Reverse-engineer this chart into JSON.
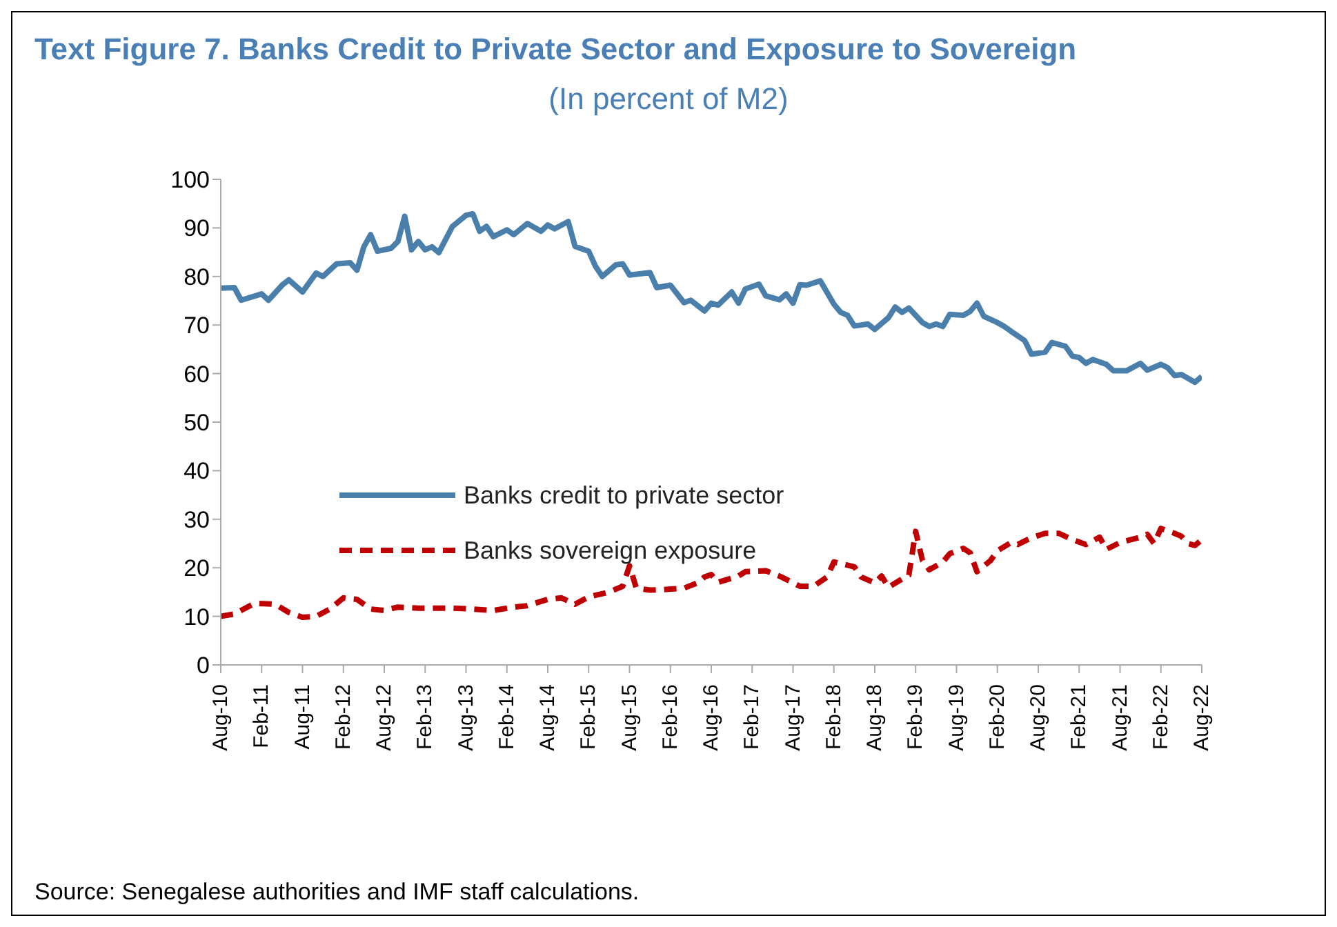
{
  "chart_data": {
    "type": "line",
    "title": "Text Figure 7. Banks Credit to Private Sector and Exposure to Sovereign",
    "subtitle": "(In percent of M2)",
    "annotations": [
      "Source: Senegalese authorities and IMF staff calculations."
    ],
    "xlim": [
      "2010-08",
      "2022-08"
    ],
    "ylim": [
      0,
      100
    ],
    "yticks": [
      0,
      10,
      20,
      30,
      40,
      50,
      60,
      70,
      80,
      90,
      100
    ],
    "xticks": [
      {
        "value": "2010-08",
        "label": "Aug-10"
      },
      {
        "value": "2011-02",
        "label": "Feb-11"
      },
      {
        "value": "2011-08",
        "label": "Aug-11"
      },
      {
        "value": "2012-02",
        "label": "Feb-12"
      },
      {
        "value": "2012-08",
        "label": "Aug-12"
      },
      {
        "value": "2013-02",
        "label": "Feb-13"
      },
      {
        "value": "2013-08",
        "label": "Aug-13"
      },
      {
        "value": "2014-02",
        "label": "Feb-14"
      },
      {
        "value": "2014-08",
        "label": "Aug-14"
      },
      {
        "value": "2015-02",
        "label": "Feb-15"
      },
      {
        "value": "2015-08",
        "label": "Aug-15"
      },
      {
        "value": "2016-02",
        "label": "Feb-16"
      },
      {
        "value": "2016-08",
        "label": "Aug-16"
      },
      {
        "value": "2017-02",
        "label": "Feb-17"
      },
      {
        "value": "2017-08",
        "label": "Aug-17"
      },
      {
        "value": "2018-02",
        "label": "Feb-18"
      },
      {
        "value": "2018-08",
        "label": "Aug-18"
      },
      {
        "value": "2019-02",
        "label": "Feb-19"
      },
      {
        "value": "2019-08",
        "label": "Aug-19"
      },
      {
        "value": "2020-02",
        "label": "Feb-20"
      },
      {
        "value": "2020-08",
        "label": "Aug-20"
      },
      {
        "value": "2021-02",
        "label": "Feb-21"
      },
      {
        "value": "2021-08",
        "label": "Aug-21"
      },
      {
        "value": "2022-02",
        "label": "Feb-22"
      },
      {
        "value": "2022-08",
        "label": "Aug-22"
      }
    ],
    "grid": false,
    "legend": "center",
    "marker": "none",
    "series": [
      {
        "name": "Banks credit to private sector",
        "color": "#4a7fac",
        "line_style": "solid",
        "x": [
          "2010-08",
          "2010-10",
          "2010-11",
          "2011-02",
          "2011-03",
          "2011-05",
          "2011-06",
          "2011-08",
          "2011-10",
          "2011-11",
          "2012-01",
          "2012-03",
          "2012-04",
          "2012-05",
          "2012-06",
          "2012-07",
          "2012-09",
          "2012-10",
          "2012-11",
          "2012-12",
          "2013-01",
          "2013-02",
          "2013-03",
          "2013-04",
          "2013-06",
          "2013-08",
          "2013-09",
          "2013-10",
          "2013-11",
          "2013-12",
          "2014-02",
          "2014-03",
          "2014-05",
          "2014-07",
          "2014-08",
          "2014-09",
          "2014-11",
          "2014-12",
          "2015-02",
          "2015-03",
          "2015-04",
          "2015-06",
          "2015-07",
          "2015-08",
          "2015-11",
          "2015-12",
          "2016-02",
          "2016-04",
          "2016-05",
          "2016-07",
          "2016-08",
          "2016-09",
          "2016-11",
          "2016-12",
          "2017-01",
          "2017-03",
          "2017-04",
          "2017-06",
          "2017-07",
          "2017-08",
          "2017-09",
          "2017-10",
          "2017-12",
          "2018-02",
          "2018-03",
          "2018-04",
          "2018-05",
          "2018-07",
          "2018-08",
          "2018-10",
          "2018-11",
          "2018-12",
          "2019-01",
          "2019-03",
          "2019-04",
          "2019-05",
          "2019-06",
          "2019-07",
          "2019-09",
          "2019-10",
          "2019-11",
          "2019-12",
          "2020-02",
          "2020-03",
          "2020-04",
          "2020-06",
          "2020-07",
          "2020-09",
          "2020-10",
          "2020-12",
          "2021-01",
          "2021-02",
          "2021-03",
          "2021-04",
          "2021-06",
          "2021-07",
          "2021-09",
          "2021-11",
          "2021-12",
          "2022-02",
          "2022-03",
          "2022-04",
          "2022-05",
          "2022-07",
          "2022-08"
        ],
        "values": [
          77.6,
          77.7,
          75.1,
          76.4,
          75.1,
          78.2,
          79.3,
          76.8,
          80.7,
          80.0,
          82.6,
          82.8,
          81.3,
          86.1,
          88.6,
          85.2,
          85.8,
          87.2,
          92.4,
          85.5,
          87.2,
          85.5,
          86.1,
          84.9,
          90.3,
          92.6,
          92.9,
          89.3,
          90.3,
          88.2,
          89.6,
          88.6,
          90.9,
          89.3,
          90.6,
          89.8,
          91.3,
          86.2,
          85.2,
          82.1,
          80.0,
          82.4,
          82.6,
          80.3,
          80.8,
          77.7,
          78.2,
          74.6,
          75.1,
          72.9,
          74.5,
          74.1,
          76.8,
          74.5,
          77.4,
          78.4,
          76.0,
          75.2,
          76.4,
          74.5,
          78.3,
          78.2,
          79.1,
          74.3,
          72.6,
          72.0,
          69.8,
          70.2,
          69.1,
          71.5,
          73.7,
          72.6,
          73.5,
          70.5,
          69.7,
          70.2,
          69.7,
          72.2,
          72.0,
          72.8,
          74.5,
          71.8,
          70.5,
          69.7,
          68.7,
          66.8,
          64.0,
          64.4,
          66.4,
          65.6,
          63.6,
          63.3,
          62.1,
          62.9,
          61.9,
          60.6,
          60.6,
          62.1,
          60.7,
          61.9,
          61.2,
          59.6,
          59.8,
          58.2,
          59.4
        ]
      },
      {
        "name": "Banks sovereign exposure",
        "color": "#c00000",
        "line_style": "dashed",
        "x": [
          "2010-08",
          "2010-10",
          "2011-01",
          "2011-04",
          "2011-06",
          "2011-08",
          "2011-10",
          "2011-12",
          "2012-02",
          "2012-04",
          "2012-06",
          "2012-08",
          "2012-10",
          "2013-01",
          "2013-06",
          "2013-09",
          "2013-12",
          "2014-03",
          "2014-05",
          "2014-08",
          "2014-10",
          "2014-12",
          "2015-02",
          "2015-05",
          "2015-07",
          "2015-08",
          "2015-09",
          "2015-11",
          "2016-01",
          "2016-04",
          "2016-06",
          "2016-07",
          "2016-08",
          "2016-09",
          "2016-12",
          "2017-01",
          "2017-04",
          "2017-06",
          "2017-08",
          "2017-09",
          "2017-11",
          "2018-01",
          "2018-02",
          "2018-05",
          "2018-06",
          "2018-08",
          "2018-09",
          "2018-10",
          "2018-12",
          "2019-01",
          "2019-02",
          "2019-03",
          "2019-04",
          "2019-06",
          "2019-07",
          "2019-09",
          "2019-10",
          "2019-11",
          "2020-01",
          "2020-02",
          "2020-04",
          "2020-05",
          "2020-07",
          "2020-09",
          "2020-11",
          "2021-01",
          "2021-03",
          "2021-05",
          "2021-06",
          "2021-08",
          "2021-11",
          "2021-12",
          "2022-01",
          "2022-02",
          "2022-04",
          "2022-05",
          "2022-06",
          "2022-07",
          "2022-08"
        ],
        "values": [
          10.0,
          10.5,
          12.7,
          12.5,
          10.8,
          9.8,
          10.0,
          11.5,
          13.8,
          13.5,
          11.5,
          11.2,
          11.9,
          11.7,
          11.7,
          11.5,
          11.2,
          11.9,
          12.2,
          13.5,
          13.8,
          12.5,
          14.0,
          15.0,
          16.2,
          20.4,
          15.8,
          15.4,
          15.5,
          15.8,
          16.9,
          18.1,
          18.6,
          17.0,
          18.3,
          19.2,
          19.4,
          18.3,
          16.9,
          16.2,
          16.2,
          18.1,
          21.2,
          20.2,
          18.1,
          16.9,
          18.3,
          16.0,
          17.7,
          18.5,
          27.5,
          21.5,
          19.6,
          21.2,
          22.9,
          24.0,
          23.1,
          19.2,
          21.5,
          23.5,
          25.2,
          24.8,
          26.2,
          27.1,
          27.1,
          25.8,
          24.8,
          26.3,
          23.8,
          25.2,
          26.3,
          26.9,
          25.0,
          28.1,
          27.1,
          26.5,
          25.0,
          24.6,
          25.8
        ]
      }
    ]
  }
}
